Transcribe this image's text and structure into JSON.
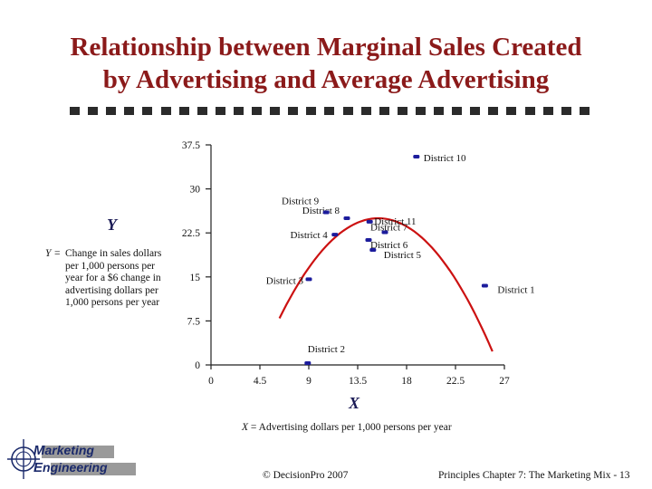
{
  "slide": {
    "title_line1": "Relationship between Marginal Sales Created",
    "title_line2": "by Advertising and Average Advertising",
    "copyright": "© DecisionPro 2007",
    "footer": "Principles Chapter 7: The Marketing Mix - 13",
    "title_color": "#8b1a1a"
  },
  "legend": {
    "y_letter": "Y",
    "y_key": "Y",
    "y_dash": "=",
    "y_desc": "Change in sales dollars per 1,000 persons per year for a $6 change in advertising dollars per 1,000 persons per year",
    "x_letter": "X",
    "x_key": "X",
    "x_dash": "=",
    "x_desc": "Advertising dollars per 1,000 persons per year"
  },
  "logo": {
    "line1_cap": "M",
    "line1_rest": "arketing",
    "line2_cap": "E",
    "line2_rest": "ngineering",
    "icon": "compass-crosshair-icon"
  },
  "chart_data": {
    "type": "scatter",
    "title": "Relationship between Marginal Sales Created by Advertising and Average Advertising",
    "xlabel": "X",
    "ylabel": "Y",
    "xlim": [
      0,
      27
    ],
    "ylim": [
      0,
      37.5
    ],
    "x_ticks": [
      "0",
      "4.5",
      "9",
      "13.5",
      "18",
      "22.5",
      "27"
    ],
    "y_ticks": [
      "0",
      "7.5",
      "15",
      "22.5",
      "30",
      "37.5"
    ],
    "point_color": "#1c1c9c",
    "curve_color": "#cc1111",
    "points": [
      {
        "label": "District 1",
        "x": 25.2,
        "y": 13.5
      },
      {
        "label": "District 2",
        "x": 8.9,
        "y": 0.3
      },
      {
        "label": "District 3",
        "x": 9.0,
        "y": 14.6
      },
      {
        "label": "District 4",
        "x": 11.4,
        "y": 22.2
      },
      {
        "label": "District 5",
        "x": 14.9,
        "y": 19.6
      },
      {
        "label": "District 6",
        "x": 14.5,
        "y": 21.3
      },
      {
        "label": "District 7",
        "x": 16.0,
        "y": 22.6
      },
      {
        "label": "District 8",
        "x": 12.5,
        "y": 25.0
      },
      {
        "label": "District 9",
        "x": 10.6,
        "y": 26.0
      },
      {
        "label": "District 10",
        "x": 18.9,
        "y": 35.5
      },
      {
        "label": "District 11",
        "x": 14.6,
        "y": 24.4
      }
    ],
    "curve": {
      "description": "quadratic fit",
      "x_from": 6.3,
      "x_to": 25.9,
      "peak_x": 15.4,
      "peak_y": 25.0,
      "end_y": 2.3
    }
  }
}
